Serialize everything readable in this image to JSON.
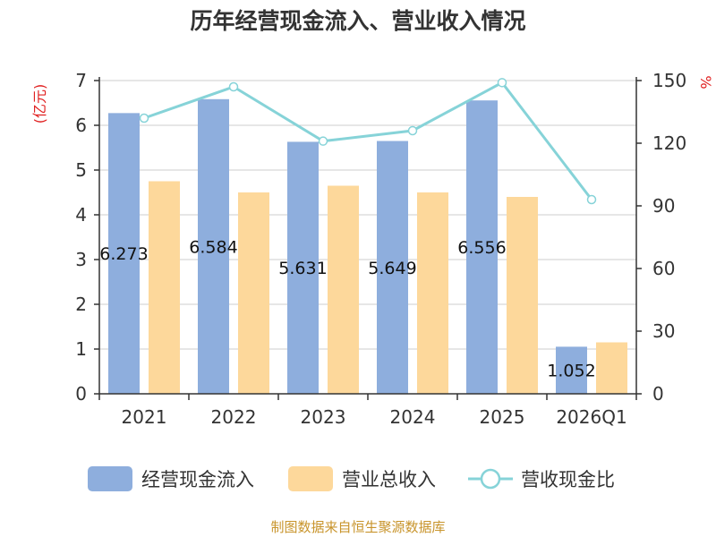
{
  "chart_data": {
    "type": "bar",
    "title": "历年经营现金流入、营业收入情况",
    "categories": [
      "2021",
      "2022",
      "2023",
      "2024",
      "2025",
      "2026Q1"
    ],
    "y_left": {
      "unit": "(亿元)",
      "ylim": [
        0,
        7
      ],
      "ticks": [
        "0",
        "1",
        "2",
        "3",
        "4",
        "5",
        "6",
        "7"
      ]
    },
    "y_right": {
      "unit": "%",
      "ylim": [
        0,
        150
      ],
      "ticks": [
        "0",
        "30",
        "60",
        "90",
        "120",
        "150"
      ]
    },
    "series": [
      {
        "name": "经营现金流入",
        "type": "bar",
        "axis": "left",
        "color": "#8eaedd",
        "values": [
          6.273,
          6.584,
          5.631,
          5.649,
          6.556,
          1.052
        ],
        "labels": [
          "6.273",
          "6.584",
          "5.631",
          "5.649",
          "6.556",
          "1.052"
        ]
      },
      {
        "name": "营业总收入",
        "type": "bar",
        "axis": "left",
        "color": "#fdd89b",
        "values": [
          4.75,
          4.5,
          4.65,
          4.5,
          4.4,
          1.15
        ]
      },
      {
        "name": "营收现金比",
        "type": "line",
        "axis": "right",
        "color": "#86d3d8",
        "values": [
          132,
          147,
          121,
          126,
          149,
          93
        ]
      }
    ],
    "grid": true,
    "legend_position": "bottom"
  },
  "source": "制图数据来自恒生聚源数据库"
}
